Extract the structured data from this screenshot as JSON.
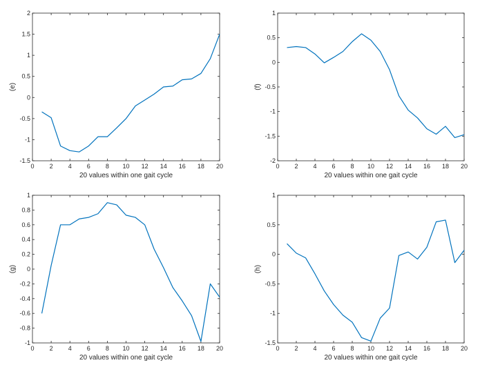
{
  "chart_data": [
    {
      "type": "line",
      "ylabel": "(e)",
      "xlabel": "20 values within one gait cycle",
      "xlim": [
        0,
        20
      ],
      "ylim": [
        -1.5,
        2
      ],
      "xticks": [
        0,
        2,
        4,
        6,
        8,
        10,
        12,
        14,
        16,
        18,
        20
      ],
      "xtick_labels": [
        "0",
        "2",
        "4",
        "6",
        "8",
        "10",
        "12",
        "14",
        "16",
        "18",
        "20"
      ],
      "yticks": [
        -1.5,
        -1,
        -0.5,
        0,
        0.5,
        1,
        1.5,
        2
      ],
      "ytick_labels": [
        "-1.5",
        "-1",
        "-0.5",
        "0",
        "0.5",
        "1",
        "1.5",
        "2"
      ],
      "x": [
        1,
        2,
        3,
        4,
        5,
        6,
        7,
        8,
        9,
        10,
        11,
        12,
        13,
        14,
        15,
        16,
        17,
        18,
        19,
        20
      ],
      "values": [
        -0.34,
        -0.48,
        -1.15,
        -1.26,
        -1.29,
        -1.15,
        -0.93,
        -0.93,
        -0.72,
        -0.5,
        -0.2,
        -0.06,
        0.08,
        0.25,
        0.27,
        0.42,
        0.44,
        0.57,
        0.92,
        1.5
      ],
      "color": "#0072bd"
    },
    {
      "type": "line",
      "ylabel": "(f)",
      "xlabel": "20 values within one gait cycle",
      "xlim": [
        0,
        20
      ],
      "ylim": [
        -2,
        1
      ],
      "xticks": [
        0,
        2,
        4,
        6,
        8,
        10,
        12,
        14,
        16,
        18,
        20
      ],
      "xtick_labels": [
        "0",
        "2",
        "4",
        "6",
        "8",
        "10",
        "12",
        "14",
        "16",
        "18",
        "20"
      ],
      "yticks": [
        -2,
        -1.5,
        -1,
        -0.5,
        0,
        0.5,
        1
      ],
      "ytick_labels": [
        "-2",
        "-1.5",
        "-1",
        "-0.5",
        "0",
        "0.5",
        "1"
      ],
      "x": [
        1,
        2,
        3,
        4,
        5,
        6,
        7,
        8,
        9,
        10,
        11,
        12,
        13,
        14,
        15,
        16,
        17,
        18,
        19,
        20
      ],
      "values": [
        0.3,
        0.32,
        0.3,
        0.17,
        -0.01,
        0.1,
        0.22,
        0.42,
        0.58,
        0.45,
        0.22,
        -0.15,
        -0.68,
        -0.97,
        -1.13,
        -1.35,
        -1.46,
        -1.3,
        -1.53,
        -1.47
      ],
      "color": "#0072bd"
    },
    {
      "type": "line",
      "ylabel": "(g)",
      "xlabel": "20 values within one gait cycle",
      "xlim": [
        0,
        20
      ],
      "ylim": [
        -1,
        1
      ],
      "xticks": [
        0,
        2,
        4,
        6,
        8,
        10,
        12,
        14,
        16,
        18,
        20
      ],
      "xtick_labels": [
        "0",
        "2",
        "4",
        "6",
        "8",
        "10",
        "12",
        "14",
        "16",
        "18",
        "20"
      ],
      "yticks": [
        -1,
        -0.8,
        -0.6,
        -0.4,
        -0.2,
        0,
        0.2,
        0.4,
        0.6,
        0.8,
        1
      ],
      "ytick_labels": [
        "-1",
        "-0.8",
        "-0.6",
        "-0.4",
        "-0.2",
        "0",
        "0.2",
        "0.4",
        "0.6",
        "0.8",
        "1"
      ],
      "x": [
        1,
        2,
        3,
        4,
        5,
        6,
        7,
        8,
        9,
        10,
        11,
        12,
        13,
        14,
        15,
        16,
        17,
        18,
        19,
        20
      ],
      "values": [
        -0.6,
        0.05,
        0.6,
        0.6,
        0.68,
        0.7,
        0.75,
        0.9,
        0.87,
        0.73,
        0.7,
        0.6,
        0.27,
        0.02,
        -0.25,
        -0.43,
        -0.63,
        -0.98,
        -0.2,
        -0.38
      ],
      "color": "#0072bd"
    },
    {
      "type": "line",
      "ylabel": "(h)",
      "xlabel": "20 values within one gait cycle",
      "xlim": [
        0,
        20
      ],
      "ylim": [
        -1.5,
        1
      ],
      "xticks": [
        0,
        2,
        4,
        6,
        8,
        10,
        12,
        14,
        16,
        18,
        20
      ],
      "xtick_labels": [
        "0",
        "2",
        "4",
        "6",
        "8",
        "10",
        "12",
        "14",
        "16",
        "18",
        "20"
      ],
      "yticks": [
        -1.5,
        -1,
        -0.5,
        0,
        0.5,
        1
      ],
      "ytick_labels": [
        "-1.5",
        "-1",
        "-0.5",
        "0",
        "0.5",
        "1"
      ],
      "x": [
        1,
        2,
        3,
        4,
        5,
        6,
        7,
        8,
        9,
        10,
        11,
        12,
        13,
        14,
        15,
        16,
        17,
        18,
        19,
        20
      ],
      "values": [
        0.18,
        0.02,
        -0.06,
        -0.33,
        -0.62,
        -0.85,
        -1.03,
        -1.15,
        -1.41,
        -1.47,
        -1.08,
        -0.91,
        -0.02,
        0.04,
        -0.08,
        0.12,
        0.55,
        0.58,
        -0.14,
        0.07
      ],
      "color": "#0072bd"
    }
  ]
}
